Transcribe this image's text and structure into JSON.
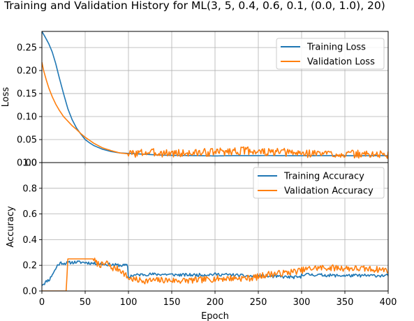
{
  "figure_title": "Training and Validation History for ML(3, 5, 0.4, 0.6, 0.1, (0.0, 1.0), 20)",
  "colors": {
    "training": "#1f77b4",
    "validation": "#ff7f0e",
    "grid": "#b0b0b0"
  },
  "chart_data": [
    {
      "type": "line",
      "title": "",
      "xlabel": "",
      "ylabel": "Loss",
      "xlim": [
        0,
        400
      ],
      "ylim": [
        0.0,
        0.285
      ],
      "yticks": [
        0.0,
        0.05,
        0.1,
        0.15,
        0.2,
        0.25
      ],
      "ytick_labels": [
        "0.00",
        "0.05",
        "0.10",
        "0.15",
        "0.20",
        "0.25"
      ],
      "grid": true,
      "legend": "top-right",
      "series": [
        {
          "name": "Training Loss",
          "color": "#1f77b4",
          "style": "smooth",
          "x": [
            0,
            4,
            8,
            12,
            16,
            20,
            25,
            30,
            35,
            40,
            45,
            50,
            55,
            60,
            70,
            80,
            90,
            100,
            120,
            140,
            160,
            180,
            200,
            220,
            240,
            260,
            280,
            300,
            320,
            340,
            360,
            380,
            400
          ],
          "y": [
            0.285,
            0.272,
            0.258,
            0.24,
            0.215,
            0.185,
            0.15,
            0.117,
            0.093,
            0.075,
            0.062,
            0.05,
            0.043,
            0.037,
            0.029,
            0.024,
            0.021,
            0.02,
            0.018,
            0.016,
            0.0155,
            0.015,
            0.0145,
            0.015,
            0.015,
            0.0152,
            0.015,
            0.0148,
            0.015,
            0.015,
            0.0148,
            0.015,
            0.015
          ]
        },
        {
          "name": "Validation Loss",
          "color": "#ff7f0e",
          "style": "noisy",
          "noise_from": 100,
          "noise_amp": 0.009,
          "seed": 3,
          "x": [
            0,
            2,
            5,
            8,
            12,
            16,
            20,
            25,
            30,
            35,
            40,
            45,
            50,
            60,
            70,
            80,
            90,
            100,
            120,
            140,
            160,
            180,
            200,
            220,
            240,
            260,
            280,
            300,
            320,
            340,
            360,
            380,
            400
          ],
          "y": [
            0.218,
            0.2,
            0.18,
            0.162,
            0.143,
            0.127,
            0.114,
            0.1,
            0.09,
            0.08,
            0.072,
            0.063,
            0.055,
            0.042,
            0.032,
            0.026,
            0.021,
            0.019,
            0.022,
            0.021,
            0.02,
            0.021,
            0.023,
            0.025,
            0.026,
            0.022,
            0.022,
            0.02,
            0.02,
            0.019,
            0.018,
            0.018,
            0.017
          ]
        }
      ]
    },
    {
      "type": "line",
      "title": "",
      "xlabel": "Epoch",
      "ylabel": "Accuracy",
      "xlim": [
        0,
        400
      ],
      "ylim": [
        0.0,
        1.0
      ],
      "yticks": [
        0.0,
        0.2,
        0.4,
        0.6,
        0.8,
        1.0
      ],
      "ytick_labels": [
        "0.0",
        "0.2",
        "0.4",
        "0.6",
        "0.8",
        "1.0"
      ],
      "xticks": [
        0,
        50,
        100,
        150,
        200,
        250,
        300,
        350,
        400
      ],
      "xtick_labels": [
        "0",
        "50",
        "100",
        "150",
        "200",
        "250",
        "300",
        "350",
        "400"
      ],
      "grid": true,
      "legend": "top-right",
      "series": [
        {
          "name": "Training Accuracy",
          "color": "#1f77b4",
          "style": "noisy",
          "noise_from": 0,
          "noise_amp": 0.012,
          "seed": 11,
          "x": [
            0,
            3,
            6,
            9,
            12,
            15,
            18,
            22,
            26,
            30,
            40,
            50,
            60,
            70,
            80,
            90,
            99,
            100,
            103,
            110,
            120,
            140,
            160,
            180,
            200,
            220,
            240,
            260,
            280,
            299,
            300,
            320,
            340,
            360,
            380,
            400
          ],
          "y": [
            0.05,
            0.06,
            0.08,
            0.09,
            0.13,
            0.16,
            0.2,
            0.22,
            0.215,
            0.22,
            0.225,
            0.222,
            0.215,
            0.21,
            0.205,
            0.2,
            0.198,
            0.1,
            0.12,
            0.125,
            0.13,
            0.13,
            0.125,
            0.125,
            0.13,
            0.125,
            0.115,
            0.115,
            0.11,
            0.105,
            0.13,
            0.125,
            0.12,
            0.12,
            0.12,
            0.12
          ]
        },
        {
          "name": "Validation Accuracy",
          "color": "#ff7f0e",
          "style": "noisy",
          "noise_from": 60,
          "noise_amp": 0.025,
          "seed": 7,
          "x": [
            0,
            28,
            29,
            30,
            40,
            50,
            60,
            62,
            70,
            75,
            80,
            90,
            100,
            110,
            120,
            140,
            160,
            180,
            200,
            220,
            240,
            250,
            260,
            280,
            300,
            310,
            320,
            340,
            360,
            380,
            400
          ],
          "y": [
            0.0,
            0.0,
            0.12,
            0.25,
            0.25,
            0.25,
            0.25,
            0.22,
            0.2,
            0.22,
            0.18,
            0.17,
            0.1,
            0.085,
            0.08,
            0.085,
            0.08,
            0.085,
            0.095,
            0.1,
            0.1,
            0.11,
            0.13,
            0.14,
            0.16,
            0.175,
            0.18,
            0.18,
            0.175,
            0.17,
            0.165
          ]
        }
      ]
    }
  ]
}
